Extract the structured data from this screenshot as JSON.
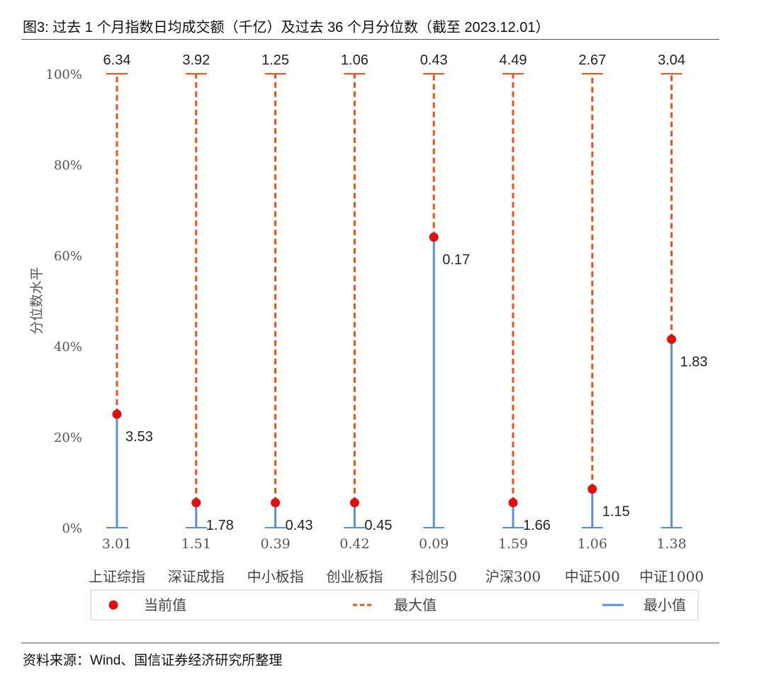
{
  "figure_title": "图3: 过去 1 个月指数日均成交额（千亿）及过去 36 个月分位数（截至 2023.12.01）",
  "source": "资料来源：Wind、国信证券经济研究所整理",
  "chart_data": {
    "type": "dot-range",
    "ylabel": "分位数水平",
    "y_ticks": [
      "0%",
      "20%",
      "40%",
      "60%",
      "80%",
      "100%"
    ],
    "ylim": [
      0,
      100
    ],
    "categories": [
      "上证综指",
      "深证成指",
      "中小板指",
      "创业板指",
      "科创50",
      "沪深300",
      "中证500",
      "中证1000"
    ],
    "percentile": [
      25,
      5.5,
      5.5,
      5.5,
      64,
      5.5,
      8.5,
      41.5
    ],
    "max_values": [
      "6.34",
      "3.92",
      "1.25",
      "1.06",
      "0.43",
      "4.49",
      "2.67",
      "3.04"
    ],
    "current_values": [
      "3.53",
      "1.78",
      "0.43",
      "0.45",
      "0.17",
      "1.66",
      "1.15",
      "1.83"
    ],
    "min_values": [
      "3.01",
      "1.51",
      "0.39",
      "0.42",
      "0.09",
      "1.59",
      "1.06",
      "1.38"
    ],
    "legend": [
      "当前值",
      "最大值",
      "最小值"
    ],
    "legend_position": "bottom",
    "colors": {
      "current": "#e01010",
      "max": "#e8521e",
      "min": "#5b8fd6"
    }
  }
}
